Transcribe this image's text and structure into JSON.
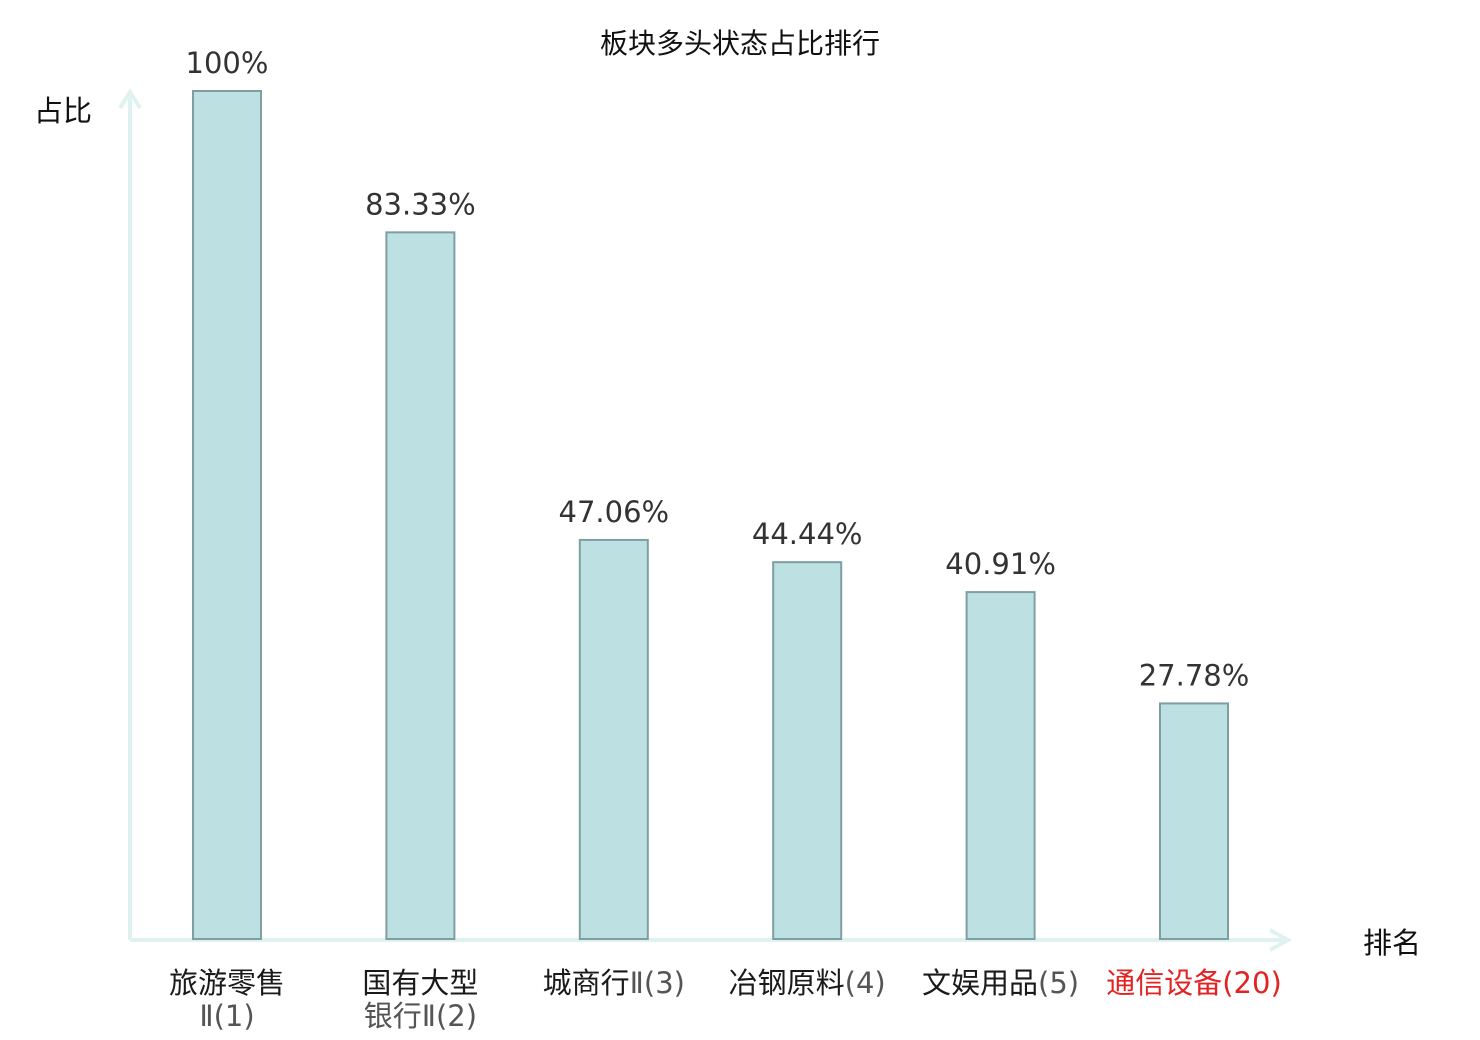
{
  "chart_data": {
    "type": "bar",
    "title": "板块多头状态占比排行",
    "ylabel": "占比",
    "xlabel": "排名",
    "ylim": [
      0,
      100
    ],
    "grid": false,
    "categories": [
      {
        "name_lines": [
          "旅游零售"
        ],
        "rank_lines": [
          "Ⅱ(1)"
        ],
        "highlight": false
      },
      {
        "name_lines": [
          "国有大型"
        ],
        "rank_lines": [
          "银行Ⅱ(2)"
        ],
        "highlight": false
      },
      {
        "name_lines": [
          "城商行"
        ],
        "rank_lines": [
          "Ⅱ(3)"
        ],
        "highlight": false,
        "inline": true
      },
      {
        "name_lines": [
          "冶钢原料"
        ],
        "rank_lines": [
          "(4)"
        ],
        "highlight": false,
        "inline": true
      },
      {
        "name_lines": [
          "文娱用品"
        ],
        "rank_lines": [
          "(5)"
        ],
        "highlight": false,
        "inline": true
      },
      {
        "name_lines": [
          "通信设备"
        ],
        "rank_lines": [
          "(20)"
        ],
        "highlight": true,
        "inline": true
      }
    ],
    "values": [
      100,
      83.33,
      47.06,
      44.44,
      40.91,
      27.78
    ],
    "value_labels": [
      "100%",
      "83.33%",
      "47.06%",
      "44.44%",
      "40.91%",
      "27.78%"
    ],
    "colors": {
      "bar_fill": "#bde0e2",
      "bar_stroke": "#7f9ea2",
      "axis": "#dff2ef",
      "highlight_text": "#e32222"
    }
  }
}
